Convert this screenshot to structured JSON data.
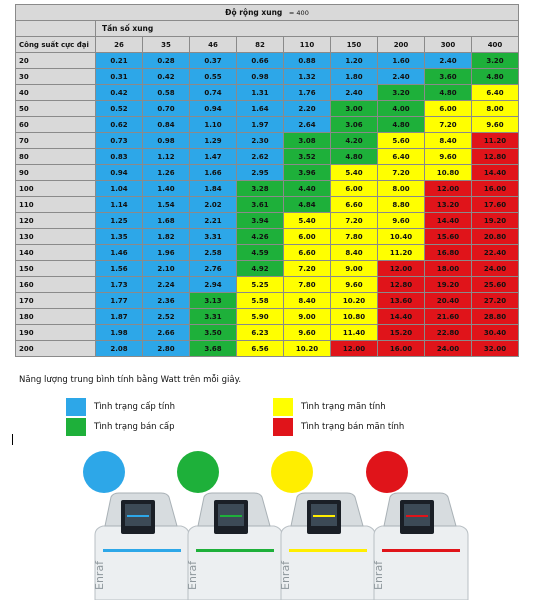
{
  "table": {
    "title": "Độ rộng xung",
    "title_value": "= 400",
    "subheader": "Tần số xung",
    "row_header": "Công suất cực đại",
    "frequencies": [
      "26",
      "35",
      "46",
      "82",
      "110",
      "150",
      "200",
      "300",
      "400"
    ],
    "rows": [
      {
        "power": "20",
        "values": [
          "0.21",
          "0.28",
          "0.37",
          "0.66",
          "0.88",
          "1.20",
          "1.60",
          "2.40",
          "3.20"
        ],
        "colors": [
          "b",
          "b",
          "b",
          "b",
          "b",
          "b",
          "b",
          "b",
          "g"
        ]
      },
      {
        "power": "30",
        "values": [
          "0.31",
          "0.42",
          "0.55",
          "0.98",
          "1.32",
          "1.80",
          "2.40",
          "3.60",
          "4.80"
        ],
        "colors": [
          "b",
          "b",
          "b",
          "b",
          "b",
          "b",
          "b",
          "g",
          "g"
        ]
      },
      {
        "power": "40",
        "values": [
          "0.42",
          "0.58",
          "0.74",
          "1.31",
          "1.76",
          "2.40",
          "3.20",
          "4.80",
          "6.40"
        ],
        "colors": [
          "b",
          "b",
          "b",
          "b",
          "b",
          "b",
          "g",
          "g",
          "y"
        ]
      },
      {
        "power": "50",
        "values": [
          "0.52",
          "0.70",
          "0.94",
          "1.64",
          "2.20",
          "3.00",
          "4.00",
          "6.00",
          "8.00"
        ],
        "colors": [
          "b",
          "b",
          "b",
          "b",
          "b",
          "g",
          "g",
          "y",
          "y"
        ]
      },
      {
        "power": "60",
        "values": [
          "0.62",
          "0.84",
          "1.10",
          "1.97",
          "2.64",
          "3.06",
          "4.80",
          "7.20",
          "9.60"
        ],
        "colors": [
          "b",
          "b",
          "b",
          "b",
          "b",
          "g",
          "g",
          "y",
          "y"
        ]
      },
      {
        "power": "70",
        "values": [
          "0.73",
          "0.98",
          "1.29",
          "2.30",
          "3.08",
          "4.20",
          "5.60",
          "8.40",
          "11.20"
        ],
        "colors": [
          "b",
          "b",
          "b",
          "b",
          "g",
          "g",
          "y",
          "y",
          "r"
        ]
      },
      {
        "power": "80",
        "values": [
          "0.83",
          "1.12",
          "1.47",
          "2.62",
          "3.52",
          "4.80",
          "6.40",
          "9.60",
          "12.80"
        ],
        "colors": [
          "b",
          "b",
          "b",
          "b",
          "g",
          "g",
          "y",
          "y",
          "r"
        ]
      },
      {
        "power": "90",
        "values": [
          "0.94",
          "1.26",
          "1.66",
          "2.95",
          "3.96",
          "5.40",
          "7.20",
          "10.80",
          "14.40"
        ],
        "colors": [
          "b",
          "b",
          "b",
          "b",
          "g",
          "y",
          "y",
          "y",
          "r"
        ]
      },
      {
        "power": "100",
        "values": [
          "1.04",
          "1.40",
          "1.84",
          "3.28",
          "4.40",
          "6.00",
          "8.00",
          "12.00",
          "16.00"
        ],
        "colors": [
          "b",
          "b",
          "b",
          "g",
          "g",
          "y",
          "y",
          "r",
          "r"
        ]
      },
      {
        "power": "110",
        "values": [
          "1.14",
          "1.54",
          "2.02",
          "3.61",
          "4.84",
          "6.60",
          "8.80",
          "13.20",
          "17.60"
        ],
        "colors": [
          "b",
          "b",
          "b",
          "g",
          "g",
          "y",
          "y",
          "r",
          "r"
        ]
      },
      {
        "power": "120",
        "values": [
          "1.25",
          "1.68",
          "2.21",
          "3.94",
          "5.40",
          "7.20",
          "9.60",
          "14.40",
          "19.20"
        ],
        "colors": [
          "b",
          "b",
          "b",
          "g",
          "y",
          "y",
          "y",
          "r",
          "r"
        ]
      },
      {
        "power": "130",
        "values": [
          "1.35",
          "1.82",
          "3.31",
          "4.26",
          "6.00",
          "7.80",
          "10.40",
          "15.60",
          "20.80"
        ],
        "colors": [
          "b",
          "b",
          "b",
          "g",
          "y",
          "y",
          "y",
          "r",
          "r"
        ]
      },
      {
        "power": "140",
        "values": [
          "1.46",
          "1.96",
          "2.58",
          "4.59",
          "6.60",
          "8.40",
          "11.20",
          "16.80",
          "22.40"
        ],
        "colors": [
          "b",
          "b",
          "b",
          "g",
          "y",
          "y",
          "y",
          "r",
          "r"
        ]
      },
      {
        "power": "150",
        "values": [
          "1.56",
          "2.10",
          "2.76",
          "4.92",
          "7.20",
          "9.00",
          "12.00",
          "18.00",
          "24.00"
        ],
        "colors": [
          "b",
          "b",
          "b",
          "g",
          "y",
          "y",
          "r",
          "r",
          "r"
        ]
      },
      {
        "power": "160",
        "values": [
          "1.73",
          "2.24",
          "2.94",
          "5.25",
          "7.80",
          "9.60",
          "12.80",
          "19.20",
          "25.60"
        ],
        "colors": [
          "b",
          "b",
          "b",
          "y",
          "y",
          "y",
          "r",
          "r",
          "r"
        ]
      },
      {
        "power": "170",
        "values": [
          "1.77",
          "2.36",
          "3.13",
          "5.58",
          "8.40",
          "10.20",
          "13.60",
          "20.40",
          "27.20"
        ],
        "colors": [
          "b",
          "b",
          "g",
          "y",
          "y",
          "y",
          "r",
          "r",
          "r"
        ]
      },
      {
        "power": "180",
        "values": [
          "1.87",
          "2.52",
          "3.31",
          "5.90",
          "9.00",
          "10.80",
          "14.40",
          "21.60",
          "28.80"
        ],
        "colors": [
          "b",
          "b",
          "g",
          "y",
          "y",
          "y",
          "r",
          "r",
          "r"
        ]
      },
      {
        "power": "190",
        "values": [
          "1.98",
          "2.66",
          "3.50",
          "6.23",
          "9.60",
          "11.40",
          "15.20",
          "22.80",
          "30.40"
        ],
        "colors": [
          "b",
          "b",
          "g",
          "y",
          "y",
          "y",
          "r",
          "r",
          "r"
        ]
      },
      {
        "power": "200",
        "values": [
          "2.08",
          "2.80",
          "3.68",
          "6.56",
          "10.20",
          "12.00",
          "16.00",
          "24.00",
          "32.00"
        ],
        "colors": [
          "b",
          "b",
          "g",
          "y",
          "y",
          "r",
          "r",
          "r",
          "r"
        ]
      }
    ]
  },
  "note": "Năng lượng trung bình tính bằng Watt trên mỗi giây.",
  "legend": [
    {
      "label": "Tình trạng cấp tính",
      "color": "#2da7e8"
    },
    {
      "label": "Tình trạng bán cấp",
      "color": "#1eb03a"
    },
    {
      "label": "Tình trạng mãn tính",
      "color": "#ffff00"
    },
    {
      "label": "Tình trạng bán mãn tính",
      "color": "#e0141a"
    }
  ],
  "devices": {
    "brand": "Enraf",
    "colors": [
      "#2da7e8",
      "#1eb03a",
      "#ffee00",
      "#e0141a"
    ]
  }
}
